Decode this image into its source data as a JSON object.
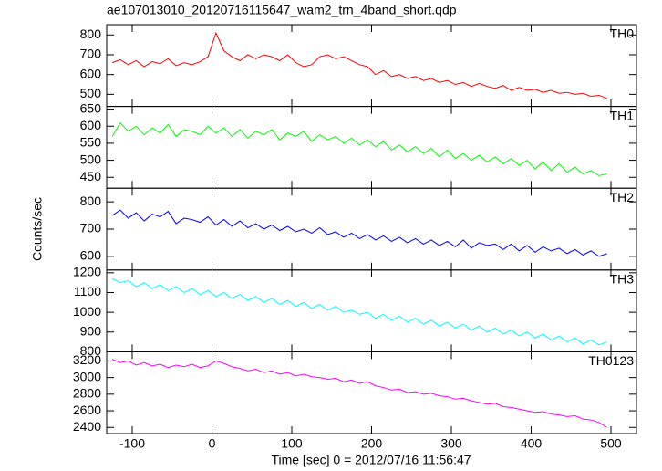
{
  "chart_data": {
    "type": "line",
    "title": "ae107013010_20120716115647_wam2_trn_4band_short.qdp",
    "xlabel": "Time [sec] 0 = 2012/07/16 11:56:47",
    "ylabel": "Counts/sec",
    "xlim": [
      -132,
      532
    ],
    "xticks": [
      -100,
      0,
      100,
      200,
      300,
      400,
      500
    ],
    "x": [
      -125,
      -115,
      -105,
      -95,
      -85,
      -75,
      -65,
      -55,
      -45,
      -35,
      -25,
      -15,
      -5,
      5,
      15,
      25,
      35,
      45,
      55,
      65,
      75,
      85,
      95,
      105,
      115,
      125,
      135,
      145,
      155,
      165,
      175,
      185,
      195,
      205,
      215,
      225,
      235,
      245,
      255,
      265,
      275,
      285,
      295,
      305,
      315,
      325,
      335,
      345,
      355,
      365,
      375,
      385,
      395,
      405,
      415,
      425,
      435,
      445,
      455,
      465,
      475,
      485,
      495
    ],
    "series": [
      {
        "name": "TH0",
        "color": "#ff0000",
        "ylim": [
          439,
          852
        ],
        "yticks": [
          500,
          600,
          700,
          800
        ],
        "values": [
          660,
          675,
          650,
          670,
          640,
          665,
          655,
          680,
          645,
          660,
          650,
          665,
          690,
          810,
          720,
          690,
          670,
          700,
          680,
          700,
          690,
          670,
          700,
          660,
          640,
          650,
          690,
          700,
          680,
          690,
          670,
          650,
          640,
          600,
          620,
          590,
          600,
          580,
          590,
          570,
          580,
          560,
          570,
          550,
          560,
          540,
          555,
          540,
          530,
          545,
          520,
          535,
          520,
          525,
          510,
          520,
          505,
          510,
          500,
          505,
          490,
          495,
          480
        ]
      },
      {
        "name": "TH1",
        "color": "#00ff00",
        "ylim": [
          418,
          658
        ],
        "yticks": [
          450,
          500,
          550,
          600,
          650
        ],
        "values": [
          570,
          610,
          585,
          600,
          575,
          595,
          580,
          605,
          570,
          590,
          585,
          575,
          600,
          580,
          595,
          570,
          590,
          565,
          585,
          575,
          590,
          560,
          580,
          570,
          585,
          555,
          575,
          560,
          570,
          550,
          565,
          545,
          560,
          540,
          555,
          530,
          545,
          525,
          540,
          520,
          535,
          510,
          530,
          505,
          520,
          500,
          515,
          495,
          510,
          490,
          505,
          485,
          500,
          475,
          495,
          470,
          490,
          465,
          480,
          460,
          470,
          455,
          460
        ]
      },
      {
        "name": "TH2",
        "color": "#0000ff",
        "ylim": [
          550,
          850
        ],
        "yticks": [
          600,
          700,
          800
        ],
        "values": [
          750,
          770,
          740,
          760,
          730,
          755,
          745,
          765,
          720,
          740,
          735,
          725,
          745,
          715,
          735,
          710,
          730,
          705,
          720,
          700,
          715,
          695,
          710,
          690,
          700,
          685,
          705,
          680,
          690,
          670,
          685,
          665,
          680,
          660,
          675,
          655,
          670,
          650,
          665,
          645,
          660,
          640,
          655,
          635,
          660,
          630,
          650,
          640,
          645,
          625,
          645,
          620,
          640,
          615,
          635,
          620,
          630,
          610,
          625,
          605,
          620,
          600,
          610
        ]
      },
      {
        "name": "TH3",
        "color": "#00ffff",
        "ylim": [
          800,
          1214
        ],
        "yticks": [
          800,
          900,
          1000,
          1100,
          1200
        ],
        "values": [
          1170,
          1150,
          1160,
          1130,
          1150,
          1120,
          1140,
          1110,
          1130,
          1100,
          1120,
          1090,
          1110,
          1080,
          1100,
          1070,
          1090,
          1060,
          1080,
          1050,
          1070,
          1040,
          1060,
          1030,
          1050,
          1020,
          1040,
          1010,
          1030,
          1000,
          1010,
          990,
          1000,
          970,
          990,
          960,
          980,
          950,
          970,
          940,
          960,
          930,
          950,
          920,
          940,
          910,
          930,
          900,
          920,
          890,
          910,
          880,
          900,
          870,
          890,
          860,
          880,
          850,
          870,
          840,
          860,
          835,
          850
        ]
      },
      {
        "name": "TH0123",
        "color": "#ff00ff",
        "ylim": [
          2326,
          3310
        ],
        "yticks": [
          2400,
          2600,
          2800,
          3000,
          3200
        ],
        "values": [
          3220,
          3180,
          3200,
          3150,
          3180,
          3140,
          3160,
          3120,
          3150,
          3130,
          3160,
          3120,
          3140,
          3200,
          3170,
          3130,
          3110,
          3080,
          3100,
          3060,
          3080,
          3040,
          3060,
          3020,
          3040,
          3010,
          3000,
          2980,
          2990,
          2950,
          2970,
          2930,
          2950,
          2900,
          2880,
          2850,
          2860,
          2820,
          2830,
          2800,
          2810,
          2780,
          2770,
          2740,
          2750,
          2720,
          2700,
          2680,
          2690,
          2650,
          2640,
          2620,
          2600,
          2580,
          2590,
          2560,
          2550,
          2530,
          2540,
          2500,
          2490,
          2460,
          2400
        ]
      }
    ]
  }
}
